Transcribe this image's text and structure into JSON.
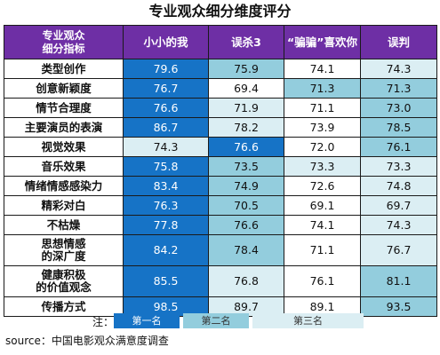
{
  "title": "专业观众细分维度评分",
  "chart_data": {
    "type": "table",
    "title": "专业观众细分维度评分",
    "header_label": [
      "专业观众",
      "细分指标"
    ],
    "columns": [
      "小小的我",
      "误杀3",
      "“骗骗”喜欢你",
      "误判"
    ],
    "rows": [
      {
        "label": [
          "类型创作"
        ],
        "values": [
          "79.6",
          "75.9",
          "74.1",
          "74.3"
        ],
        "ranks": [
          1,
          2,
          0,
          3
        ]
      },
      {
        "label": [
          "创意新颖度"
        ],
        "values": [
          "76.7",
          "69.4",
          "71.3",
          "71.3"
        ],
        "ranks": [
          1,
          0,
          2,
          2
        ]
      },
      {
        "label": [
          "情节合理度"
        ],
        "values": [
          "76.6",
          "71.9",
          "71.1",
          "73.0"
        ],
        "ranks": [
          1,
          3,
          0,
          2
        ]
      },
      {
        "label": [
          "主要演员的表演"
        ],
        "values": [
          "86.7",
          "78.2",
          "73.9",
          "78.5"
        ],
        "ranks": [
          1,
          3,
          0,
          2
        ]
      },
      {
        "label": [
          "视觉效果"
        ],
        "values": [
          "74.3",
          "76.6",
          "72.0",
          "76.1"
        ],
        "ranks": [
          3,
          1,
          0,
          2
        ]
      },
      {
        "label": [
          "音乐效果"
        ],
        "values": [
          "75.8",
          "73.5",
          "73.3",
          "73.3"
        ],
        "ranks": [
          1,
          2,
          3,
          3
        ]
      },
      {
        "label": [
          "情绪情感感染力"
        ],
        "values": [
          "83.4",
          "74.9",
          "72.6",
          "74.8"
        ],
        "ranks": [
          1,
          2,
          0,
          3
        ]
      },
      {
        "label": [
          "精彩对白"
        ],
        "values": [
          "76.3",
          "70.5",
          "69.1",
          "69.7"
        ],
        "ranks": [
          1,
          2,
          0,
          3
        ]
      },
      {
        "label": [
          "不枯燥"
        ],
        "values": [
          "77.8",
          "76.6",
          "74.1",
          "74.3"
        ],
        "ranks": [
          1,
          2,
          0,
          3
        ]
      },
      {
        "label": [
          "思想情感",
          "的深广度"
        ],
        "values": [
          "84.2",
          "78.4",
          "71.1",
          "76.7"
        ],
        "ranks": [
          1,
          2,
          0,
          3
        ]
      },
      {
        "label": [
          "健康积极",
          "的价值观念"
        ],
        "values": [
          "85.5",
          "76.8",
          "76.1",
          "81.1"
        ],
        "ranks": [
          1,
          3,
          0,
          2
        ]
      },
      {
        "label": [
          "传播方式"
        ],
        "values": [
          "98.5",
          "89.7",
          "89.1",
          "93.5"
        ],
        "ranks": [
          1,
          3,
          0,
          2
        ]
      }
    ],
    "legend": {
      "label": "注：",
      "items": [
        "第一名",
        "第二名",
        "第三名"
      ]
    },
    "colors": {
      "header": "#6e2fa5",
      "rank_1": "#1673c6",
      "rank_2": "#93cddd",
      "rank_3": "#dbeef3"
    }
  },
  "source": "source：中国电影观众满意度调查"
}
